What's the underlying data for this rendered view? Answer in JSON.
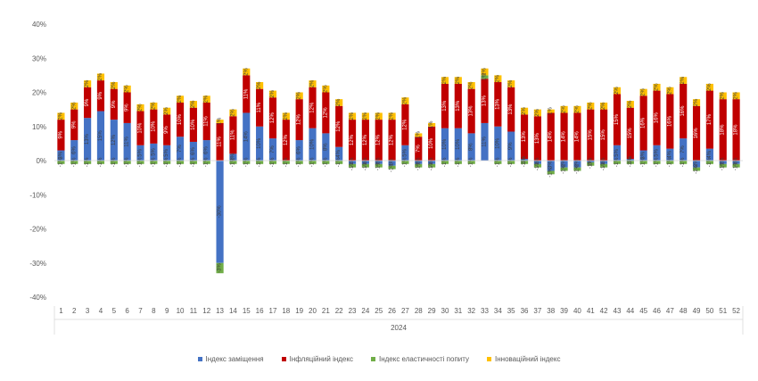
{
  "chart_data": {
    "type": "bar",
    "stacked": true,
    "xlabel": "2024",
    "ylim": [
      -40,
      40
    ],
    "yticks": [
      -40,
      -30,
      -20,
      -10,
      0,
      10,
      20,
      30,
      40
    ],
    "ytick_suffix": "%",
    "grid": false,
    "legend_position": "bottom",
    "categories": [
      1,
      2,
      3,
      4,
      5,
      6,
      7,
      8,
      9,
      10,
      11,
      12,
      13,
      14,
      15,
      16,
      17,
      18,
      19,
      20,
      21,
      22,
      23,
      24,
      25,
      26,
      27,
      28,
      29,
      30,
      31,
      32,
      33,
      34,
      35,
      36,
      37,
      38,
      39,
      40,
      41,
      42,
      43,
      44,
      45,
      46,
      47,
      48,
      49,
      50,
      51,
      52
    ],
    "series": [
      {
        "name": "Індекс заміщення",
        "color": "#4472C4",
        "values": [
          3,
          6,
          12.5,
          14.5,
          12,
          11,
          4.5,
          5,
          4.5,
          7,
          5.5,
          6,
          -30,
          2,
          14,
          10,
          6.5,
          0,
          6,
          9.5,
          8,
          4,
          -1,
          -1,
          -1,
          -1.5,
          4.5,
          -1,
          -1,
          9.5,
          9.5,
          8,
          11,
          10,
          8.5,
          0.5,
          -1,
          -3,
          -2,
          -2,
          -0.5,
          -1,
          4.5,
          0.5,
          3,
          4.5,
          3.5,
          6.5,
          -2,
          3.5,
          -1,
          -1
        ]
      },
      {
        "name": "Інфляційний індекс",
        "color": "#C00000",
        "values": [
          9,
          9,
          9,
          9,
          9,
          9,
          10,
          10,
          9,
          10,
          10,
          11,
          11,
          11,
          11,
          11,
          12,
          12,
          12,
          12,
          12,
          12,
          12,
          12,
          12,
          12,
          12,
          7,
          10,
          13,
          13,
          13,
          13,
          13,
          13,
          13,
          13,
          14,
          14,
          14,
          15,
          15,
          15,
          15,
          16,
          16,
          16,
          16,
          16,
          17,
          18,
          18
        ]
      },
      {
        "name": "Індекс еластичності попиту",
        "color": "#70AD47",
        "values": [
          -1,
          -1,
          -1,
          -1,
          -1,
          -1,
          -1,
          -1,
          -1,
          -1,
          -1,
          -1,
          -3,
          -1,
          -1,
          -1,
          -1,
          -1,
          -1,
          -1,
          -1,
          -1,
          -1,
          -1,
          -1,
          -1,
          -1,
          -1,
          -1,
          -1,
          -1,
          -1,
          1,
          -1,
          -1,
          -1,
          -1,
          -1,
          -1,
          -1,
          -1,
          -1,
          -1,
          -1,
          -1,
          -1,
          -1,
          -1,
          -1,
          -1,
          -1,
          -1
        ]
      },
      {
        "name": "Інноваційний індекс",
        "color": "#FFC000",
        "values": [
          2,
          2,
          2,
          2,
          2,
          2,
          2,
          2,
          2,
          2,
          2,
          2,
          1,
          2,
          2,
          2,
          2,
          2,
          2,
          2,
          2,
          2,
          2,
          2,
          2,
          2,
          2,
          1,
          1,
          2,
          2,
          2,
          2,
          2,
          2,
          2,
          2,
          1,
          2,
          2,
          2,
          2,
          2,
          2,
          2,
          2,
          2,
          2,
          2,
          2,
          2,
          2
        ]
      }
    ],
    "data_labels_shown": [
      0,
      1,
      2,
      3
    ]
  }
}
